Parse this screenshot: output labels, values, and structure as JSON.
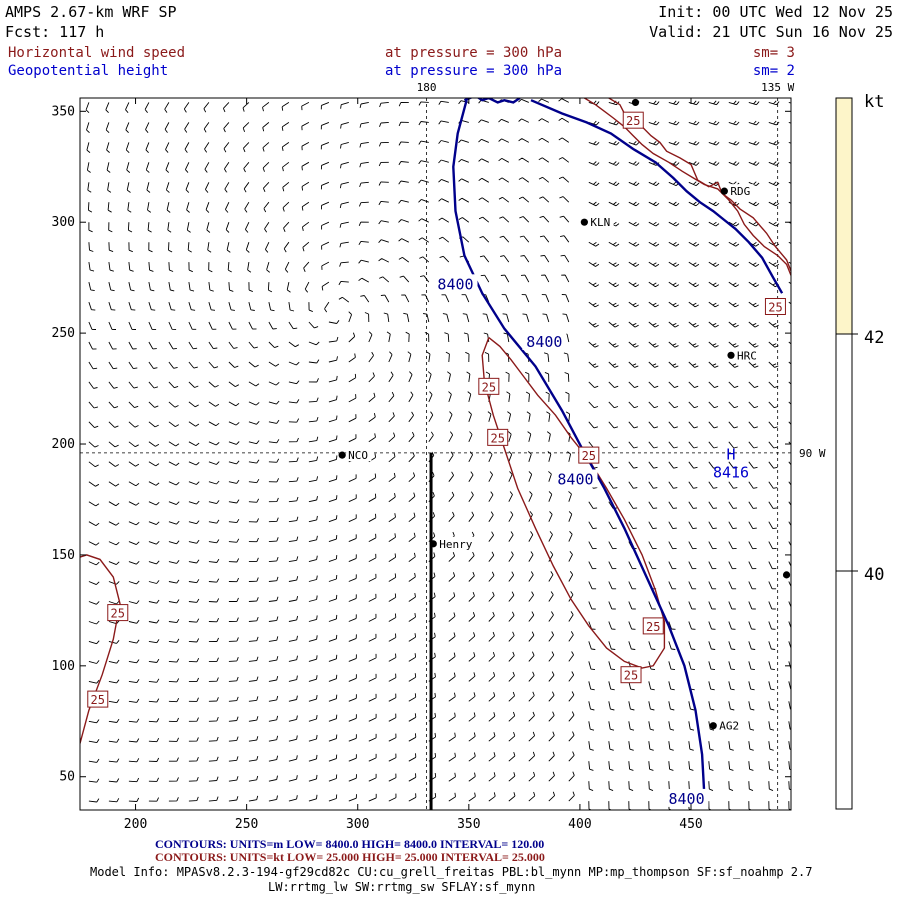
{
  "header": {
    "model": "AMPS 2.67-km WRF SP",
    "fcst": "Fcst: 117 h",
    "init": "Init: 00 UTC Wed 12 Nov 25",
    "valid": "Valid: 21 UTC Sun 16 Nov 25",
    "field1": {
      "name": "Horizontal wind speed",
      "level": "at pressure = 300 hPa",
      "sm": "sm= 3"
    },
    "field2": {
      "name": "Geopotential height",
      "level": "at pressure = 300 hPa",
      "sm": "sm= 2"
    }
  },
  "colors": {
    "wind": "#8b1a1a",
    "height": "#00008b",
    "label_blue": "#0000cd",
    "colorbar": "#fdf5c9"
  },
  "chart_data": {
    "type": "contour_map",
    "x_ticks": [
      200,
      250,
      300,
      350,
      400,
      450
    ],
    "y_ticks": [
      50,
      100,
      150,
      200,
      250,
      300,
      350
    ],
    "xlim": [
      175,
      495
    ],
    "ylim": [
      35,
      356
    ],
    "meridians": [
      {
        "label": "180",
        "x": 331
      },
      {
        "label": "135 W",
        "x": 489
      }
    ],
    "parallels": [
      {
        "label": "90 W",
        "y": 196
      }
    ],
    "cross_section": {
      "x": 333,
      "y0": 35,
      "y1": 196
    },
    "stations": [
      {
        "name": "KLN",
        "x": 402,
        "y": 300
      },
      {
        "name": "RDG",
        "x": 465,
        "y": 314
      },
      {
        "name": "HRC",
        "x": 468,
        "y": 240
      },
      {
        "name": "NCO",
        "x": 293,
        "y": 195
      },
      {
        "name": "Henry",
        "x": 334,
        "y": 155
      },
      {
        "name": "AG2",
        "x": 460,
        "y": 73
      },
      {
        "name": "",
        "x": 425,
        "y": 354
      },
      {
        "name": "",
        "x": 493,
        "y": 141
      }
    ],
    "height_contours": {
      "value": 8400,
      "label": "8400",
      "labels": [
        {
          "x": 344,
          "y": 272
        },
        {
          "x": 384,
          "y": 246
        },
        {
          "x": 398,
          "y": 184
        },
        {
          "x": 448,
          "y": 40
        }
      ],
      "lines": [
        [
          [
            348,
            355
          ],
          [
            353,
            357
          ],
          [
            356,
            355
          ],
          [
            359,
            356
          ],
          [
            363,
            354
          ],
          [
            366,
            355
          ],
          [
            370,
            354
          ],
          [
            373,
            356
          ]
        ],
        [
          [
            349,
            355
          ],
          [
            345,
            340
          ],
          [
            343,
            325
          ],
          [
            344,
            305
          ],
          [
            348,
            285
          ],
          [
            356,
            268
          ],
          [
            366,
            252
          ],
          [
            380,
            235
          ],
          [
            392,
            215
          ],
          [
            401,
            198
          ],
          [
            411,
            180
          ],
          [
            420,
            162
          ],
          [
            430,
            140
          ],
          [
            440,
            118
          ],
          [
            447,
            100
          ],
          [
            452,
            80
          ],
          [
            455,
            60
          ],
          [
            456,
            42
          ]
        ],
        [
          [
            378,
            355
          ],
          [
            392,
            349
          ],
          [
            403,
            345
          ],
          [
            414,
            340
          ],
          [
            424,
            333
          ],
          [
            434,
            327
          ],
          [
            442,
            320
          ],
          [
            448,
            314
          ],
          [
            454,
            309
          ],
          [
            460,
            305
          ],
          [
            465,
            301
          ],
          [
            470,
            297
          ],
          [
            476,
            291
          ],
          [
            482,
            284
          ],
          [
            487,
            275
          ],
          [
            491,
            268
          ]
        ]
      ],
      "extremes": [
        {
          "type": "H",
          "value": "8416",
          "x": 468,
          "y": 193
        }
      ]
    },
    "wind_contours": {
      "value": 25,
      "units": "kt",
      "label": "25",
      "labels": [
        {
          "x": 424,
          "y": 346
        },
        {
          "x": 488,
          "y": 262
        },
        {
          "x": 359,
          "y": 226
        },
        {
          "x": 363,
          "y": 203
        },
        {
          "x": 404,
          "y": 195
        },
        {
          "x": 433,
          "y": 118
        },
        {
          "x": 423,
          "y": 96
        },
        {
          "x": 192,
          "y": 124
        },
        {
          "x": 183,
          "y": 85
        }
      ],
      "lines": [
        [
          [
            413,
            356
          ],
          [
            418,
            353
          ],
          [
            420,
            349
          ],
          [
            424,
            344
          ],
          [
            428,
            343
          ],
          [
            432,
            339
          ],
          [
            436,
            336
          ],
          [
            439,
            332
          ],
          [
            445,
            329
          ],
          [
            450,
            326
          ],
          [
            453,
            319
          ],
          [
            458,
            316
          ],
          [
            462,
            318
          ],
          [
            464,
            313
          ],
          [
            468,
            310
          ],
          [
            472,
            306
          ],
          [
            478,
            302
          ],
          [
            484,
            295
          ],
          [
            488,
            289
          ],
          [
            493,
            283
          ],
          [
            495,
            278
          ]
        ],
        [
          [
            402,
            356
          ],
          [
            407,
            353
          ],
          [
            411,
            350
          ],
          [
            415,
            347
          ],
          [
            420,
            343
          ],
          [
            424,
            339
          ],
          [
            428,
            335
          ],
          [
            433,
            331
          ],
          [
            440,
            327
          ],
          [
            446,
            323
          ],
          [
            451,
            320
          ],
          [
            456,
            317
          ],
          [
            462,
            315
          ],
          [
            467,
            310
          ],
          [
            471,
            305
          ],
          [
            474,
            299
          ],
          [
            478,
            294
          ],
          [
            483,
            289
          ],
          [
            489,
            285
          ],
          [
            493,
            281
          ],
          [
            495,
            276
          ]
        ],
        [
          [
            359,
            248
          ],
          [
            364,
            244
          ],
          [
            369,
            238
          ],
          [
            375,
            230
          ],
          [
            381,
            222
          ],
          [
            389,
            213
          ],
          [
            396,
            203
          ],
          [
            404,
            193
          ],
          [
            412,
            180
          ],
          [
            420,
            166
          ],
          [
            428,
            150
          ],
          [
            434,
            134
          ],
          [
            438,
            120
          ],
          [
            438,
            108
          ],
          [
            433,
            100
          ],
          [
            428,
            99
          ],
          [
            420,
            102
          ],
          [
            412,
            108
          ],
          [
            404,
            118
          ],
          [
            396,
            130
          ],
          [
            388,
            145
          ],
          [
            380,
            162
          ],
          [
            372,
            180
          ],
          [
            366,
            198
          ],
          [
            361,
            213
          ],
          [
            357,
            228
          ],
          [
            356,
            240
          ],
          [
            359,
            248
          ]
        ],
        [
          [
            175,
            65
          ],
          [
            179,
            80
          ],
          [
            185,
            96
          ],
          [
            190,
            112
          ],
          [
            193,
            128
          ],
          [
            190,
            140
          ],
          [
            184,
            148
          ],
          [
            178,
            150
          ],
          [
            175,
            149
          ]
        ]
      ]
    },
    "wind_barbs": {
      "spacing_x": 9,
      "spacing_y": 9
    },
    "colorbar": {
      "units": "kt",
      "ticks": [
        "42",
        "40"
      ],
      "fill": "#fdf5c9"
    }
  },
  "footer": {
    "line1a": "CONTOURS: UNITS=m LOW= 8400.0 HIGH= 8400.0 INTERVAL= 120.00",
    "line1b": "CONTOURS: UNITS=kt LOW= 25.000 HIGH= 25.000 INTERVAL= 25.000",
    "model_info1": "Model Info: MPASv8.2.3-194-gf29cd82c CU:cu_grell_freitas PBL:bl_mynn MP:mp_thompson SF:sf_noahmp 2.7",
    "model_info2": "LW:rrtmg_lw SW:rrtmg_sw SFLAY:sf_mynn"
  }
}
